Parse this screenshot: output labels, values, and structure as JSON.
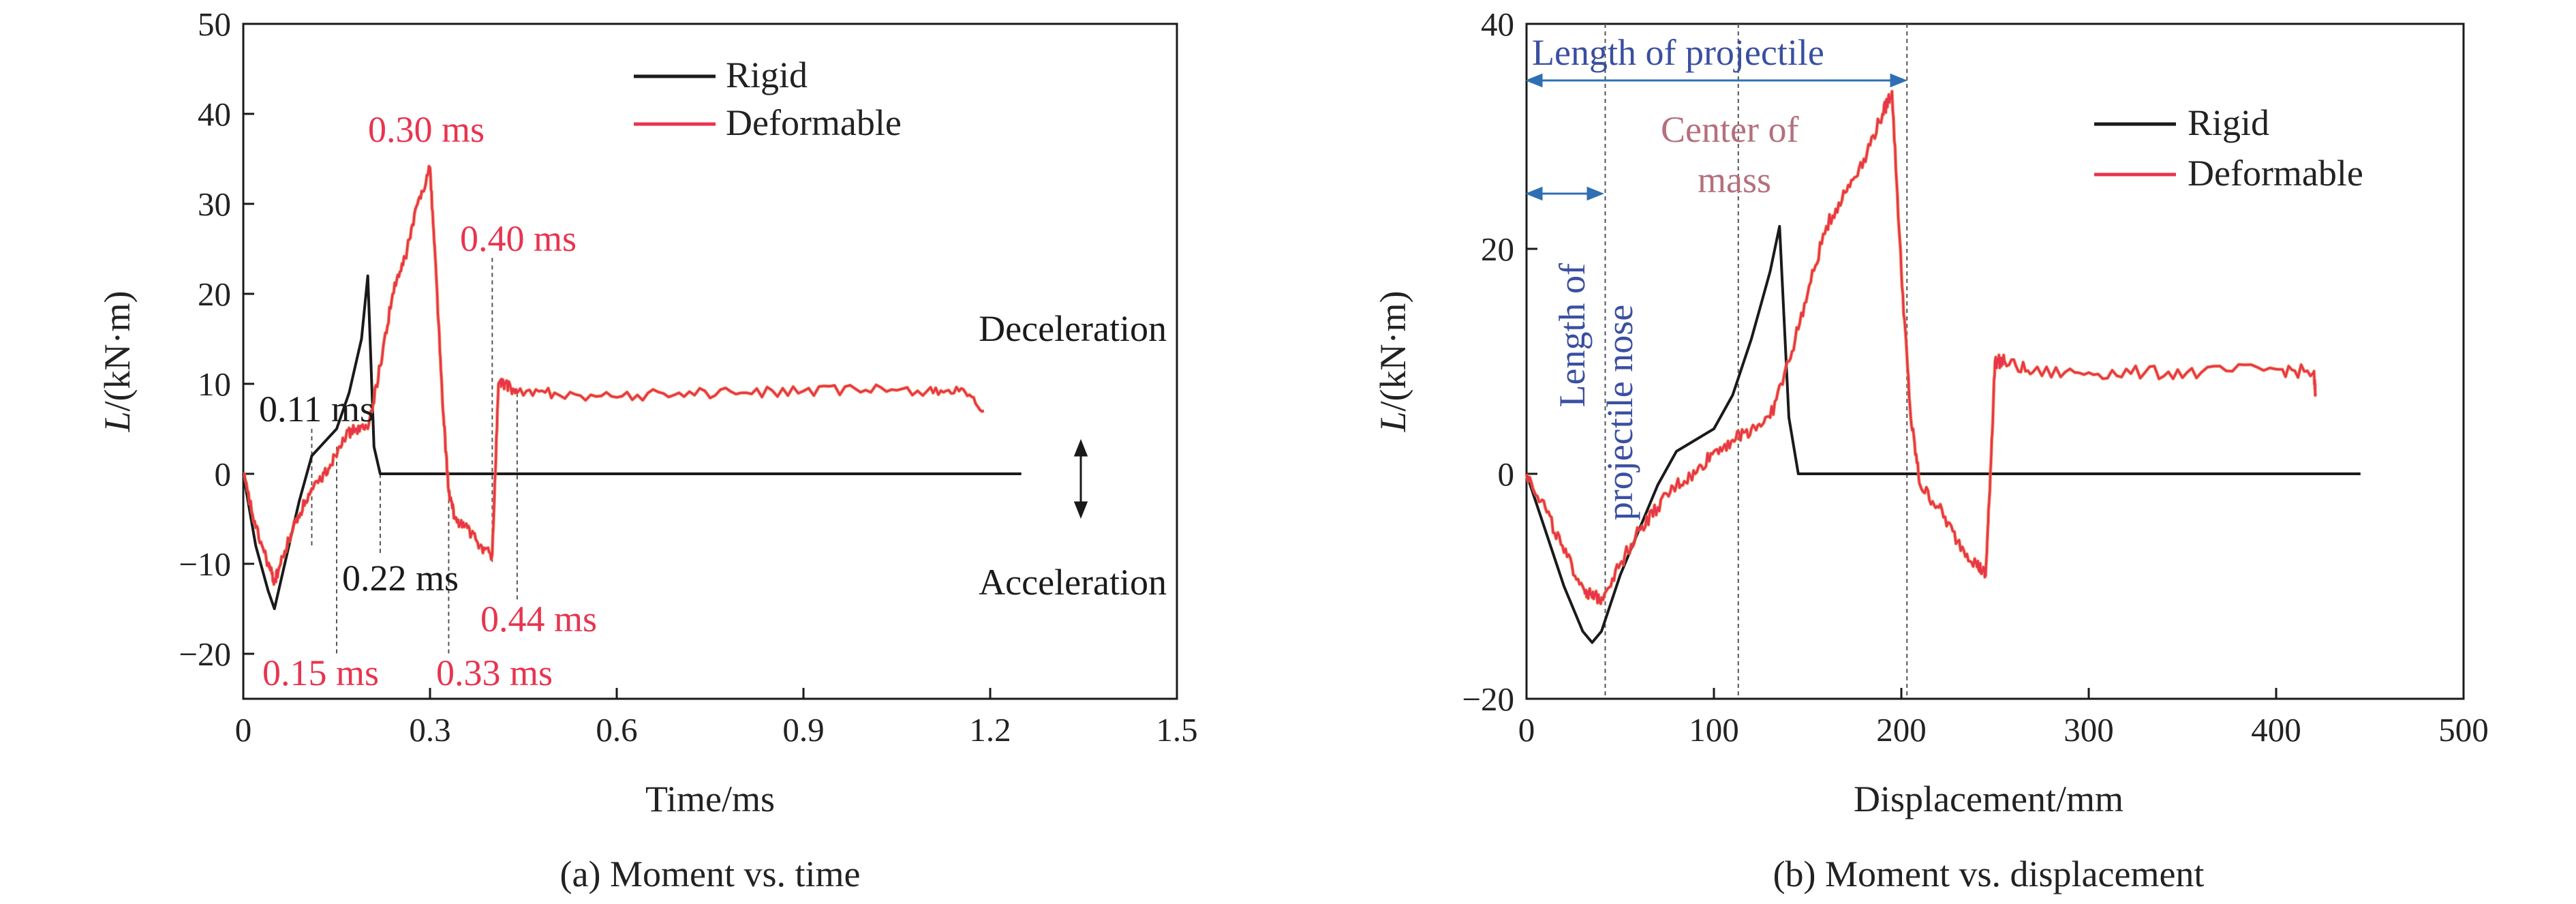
{
  "colors": {
    "rigid": "#1a1a1a",
    "deformable": "#e8344f",
    "deformable_alt": "#f07a2c",
    "annotation_time": "#e8344f",
    "annotation_black": "#1a1a1a",
    "annotation_blue": "#3a4fa0",
    "annotation_mass": "#b4707c",
    "arrow_blue": "#2f6fb3",
    "guide": "#555555"
  },
  "chart_data": [
    {
      "type": "line",
      "caption": "(a) Moment vs. time",
      "xlabel": "Time/ms",
      "ylabel_italic": "L",
      "ylabel_rest": "/(kN·m)",
      "xlim": [
        0,
        1.5
      ],
      "ylim": [
        -25,
        50
      ],
      "xticks": [
        0,
        0.3,
        0.6,
        0.9,
        1.2,
        1.5
      ],
      "xtick_labels": [
        "0",
        "0.3",
        "0.6",
        "0.9",
        "1.2",
        "1.5"
      ],
      "yticks": [
        -20,
        -10,
        0,
        10,
        20,
        30,
        40,
        50
      ],
      "ytick_labels": [
        "−20",
        "−10",
        "0",
        "10",
        "20",
        "30",
        "40",
        "50"
      ],
      "legend_position": "top-right",
      "series": [
        {
          "name": "Rigid",
          "x": [
            0,
            0.02,
            0.04,
            0.05,
            0.07,
            0.09,
            0.11,
            0.13,
            0.15,
            0.17,
            0.19,
            0.2,
            0.21,
            0.22,
            0.24,
            0.3,
            0.6,
            0.9,
            1.2,
            1.25
          ],
          "y": [
            0,
            -8,
            -13,
            -15,
            -9,
            -3,
            2,
            3.5,
            5,
            9,
            15,
            22,
            3,
            0,
            0,
            0,
            0,
            0,
            0,
            0
          ]
        },
        {
          "name": "Deformable",
          "x": [
            0,
            0.02,
            0.04,
            0.05,
            0.06,
            0.08,
            0.1,
            0.12,
            0.14,
            0.16,
            0.18,
            0.2,
            0.22,
            0.24,
            0.26,
            0.28,
            0.3,
            0.31,
            0.32,
            0.33,
            0.34,
            0.36,
            0.38,
            0.4,
            0.41,
            0.42,
            0.44,
            0.5,
            0.6,
            0.7,
            0.8,
            0.9,
            1.0,
            1.1,
            1.15,
            1.19
          ],
          "y": [
            0,
            -6,
            -10,
            -12,
            -10,
            -6,
            -3,
            -1,
            1,
            4,
            5,
            5,
            12,
            20,
            24,
            30,
            34,
            22,
            8,
            -2,
            -5,
            -6,
            -8,
            -9,
            10,
            10,
            9,
            9,
            8.5,
            9,
            9,
            9.2,
            9.3,
            9.3,
            9.2,
            7
          ]
        }
      ],
      "annotations": [
        {
          "text": "0.11 ms",
          "x": 0.11,
          "y": 5,
          "color": "black"
        },
        {
          "text": "0.15 ms",
          "x": 0.15,
          "y": -20,
          "color": "red"
        },
        {
          "text": "0.22 ms",
          "x": 0.22,
          "y": -10,
          "color": "black"
        },
        {
          "text": "0.30 ms",
          "x": 0.3,
          "y": 38,
          "color": "red"
        },
        {
          "text": "0.33 ms",
          "x": 0.33,
          "y": -20,
          "color": "red"
        },
        {
          "text": "0.40 ms",
          "x": 0.4,
          "y": 26,
          "color": "red"
        },
        {
          "text": "0.44 ms",
          "x": 0.44,
          "y": -16,
          "color": "red"
        }
      ],
      "side_labels": {
        "top": "Deceleration",
        "bottom": "Acceleration"
      }
    },
    {
      "type": "line",
      "caption": "(b) Moment vs. displacement",
      "xlabel": "Displacement/mm",
      "ylabel_italic": "L",
      "ylabel_rest": "/(kN·m)",
      "xlim": [
        0,
        500
      ],
      "ylim": [
        -20,
        40
      ],
      "xticks": [
        0,
        100,
        200,
        300,
        400,
        500
      ],
      "xtick_labels": [
        "0",
        "100",
        "200",
        "300",
        "400",
        "500"
      ],
      "yticks": [
        -20,
        0,
        20,
        40
      ],
      "ytick_labels": [
        "−20",
        "0",
        "20",
        "40"
      ],
      "legend_position": "top-right",
      "series": [
        {
          "name": "Rigid",
          "x": [
            0,
            10,
            20,
            30,
            35,
            40,
            50,
            60,
            70,
            80,
            90,
            100,
            110,
            120,
            125,
            130,
            135,
            140,
            145,
            200,
            300,
            400,
            445
          ],
          "y": [
            0,
            -5,
            -10,
            -14,
            -15,
            -14,
            -9,
            -5,
            -1,
            2,
            3,
            4,
            7,
            12,
            15,
            18,
            22,
            5,
            0,
            0,
            0,
            0,
            0
          ]
        },
        {
          "name": "Deformable",
          "x": [
            0,
            10,
            20,
            30,
            35,
            40,
            50,
            60,
            70,
            80,
            90,
            100,
            110,
            120,
            130,
            140,
            150,
            160,
            170,
            180,
            190,
            195,
            200,
            205,
            210,
            220,
            230,
            240,
            245,
            247,
            250,
            255,
            270,
            300,
            330,
            360,
            400,
            420,
            421
          ],
          "y": [
            0,
            -3,
            -7,
            -10,
            -11,
            -11,
            -8,
            -5,
            -3,
            -1,
            0,
            2,
            3,
            4,
            5,
            10,
            16,
            22,
            25,
            28,
            32,
            34,
            18,
            5,
            -1,
            -3,
            -6,
            -8,
            -9,
            -2,
            10,
            10,
            9,
            9,
            9,
            9,
            9.3,
            9,
            7
          ]
        }
      ],
      "annotations": [
        {
          "text": "Length of projectile",
          "color": "blue"
        },
        {
          "text_lines": [
            "Length of",
            "projectile nose"
          ],
          "color": "blue"
        },
        {
          "text_lines": [
            "Center of",
            "mass"
          ],
          "color": "mauve"
        }
      ],
      "guides_x": [
        42,
        113,
        203
      ]
    }
  ]
}
